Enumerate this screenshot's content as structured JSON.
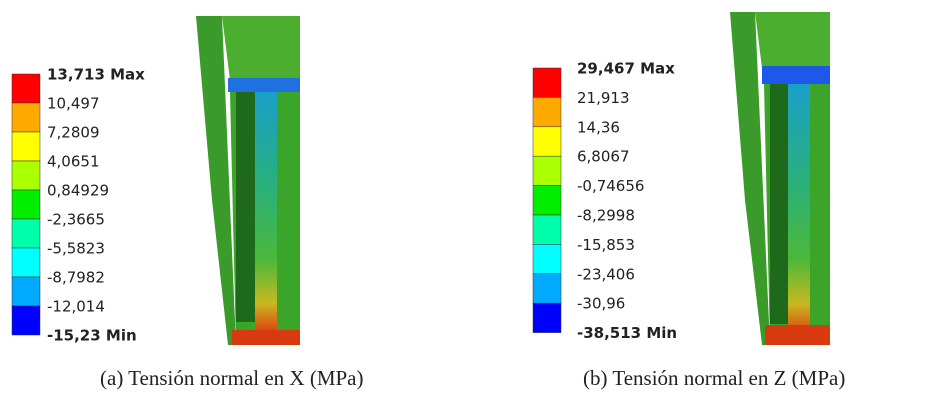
{
  "panels": [
    {
      "legend": {
        "labels": [
          "13,713 Max",
          "10,497",
          "7,2809",
          "4,0651",
          "0,84929",
          "-2,3665",
          "-5,5823",
          "-8,7982",
          "-12,014",
          "-15,23 Min"
        ]
      },
      "caption": "(a) Tensión normal en X (MPa)"
    },
    {
      "legend": {
        "labels": [
          "29,467 Max",
          "21,913",
          "14,36",
          "6,8067",
          "-0,74656",
          "-8,2998",
          "-15,853",
          "-23,406",
          "-30,96",
          "-38,513 Min"
        ]
      },
      "caption": "(b) Tensión normal en Z (MPa)"
    }
  ],
  "legend_colors": [
    "#ff0000",
    "#ffaa00",
    "#ffff00",
    "#aaff00",
    "#00ee00",
    "#00ffaa",
    "#00ffff",
    "#00aaff",
    "#0000ff"
  ]
}
